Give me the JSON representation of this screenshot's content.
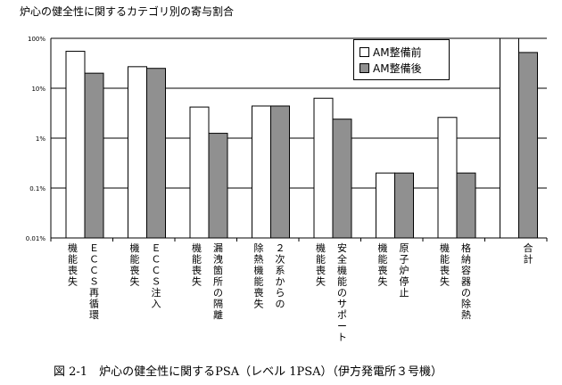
{
  "chart_data": {
    "type": "bar",
    "title": "炉心の健全性に関するカテゴリ別の寄与割合",
    "y_scale": "log",
    "ylim": [
      0.01,
      100
    ],
    "y_ticks": [
      {
        "value": 100,
        "label": "100%"
      },
      {
        "value": 10,
        "label": "10%"
      },
      {
        "value": 1,
        "label": "1%"
      },
      {
        "value": 0.1,
        "label": "0.1%"
      },
      {
        "value": 0.01,
        "label": "0.01%"
      }
    ],
    "grid": "horizontal",
    "legend_position": "top-right",
    "categories": [
      {
        "col1": "機能喪失",
        "col2": "ＥＣＣＳ再循環"
      },
      {
        "col1": "機能喪失",
        "col2": "ＥＣＣＳ注入"
      },
      {
        "col1": "機能喪失",
        "col2": "漏洩箇所の隔離"
      },
      {
        "col1": "除熱機能喪失",
        "col2": "２次系からの"
      },
      {
        "col1": "機能喪失",
        "col2": "安全機能のサポート"
      },
      {
        "col1": "機能喪失",
        "col2": "原子炉停止"
      },
      {
        "col1": "機能喪失",
        "col2": "格納容器の除熱"
      },
      {
        "col1": "",
        "col2": "合計"
      }
    ],
    "series": [
      {
        "name": "AM整備前",
        "color": "#ffffff",
        "values": [
          55,
          27,
          4.2,
          4.4,
          6.3,
          0.2,
          2.6,
          100
        ]
      },
      {
        "name": "AM整備後",
        "color": "#909090",
        "values": [
          20,
          25,
          1.25,
          4.4,
          2.4,
          0.2,
          0.2,
          52
        ]
      }
    ]
  },
  "caption": "図 2-1　炉心の健全性に関するPSA（レベル 1PSA）（伊方発電所３号機）"
}
